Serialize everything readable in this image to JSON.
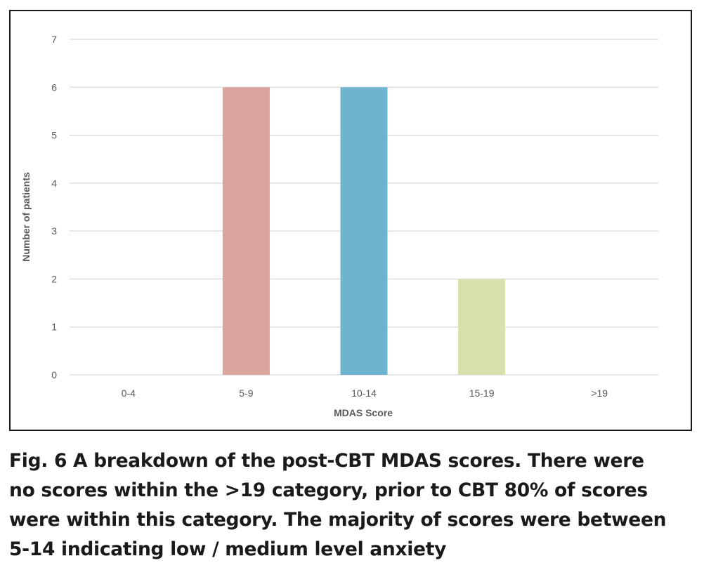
{
  "chart_data": {
    "type": "bar",
    "categories": [
      "0-4",
      "5-9",
      "10-14",
      "15-19",
      ">19"
    ],
    "values": [
      0,
      6,
      6,
      2,
      0
    ],
    "bar_colors": [
      "#dba59d",
      "#dba59d",
      "#6fb4ce",
      "#d8e0ad",
      "#dba59d"
    ],
    "xlabel": "MDAS Score",
    "ylabel": "Number of patients",
    "ylim": [
      0,
      7
    ],
    "yticks": [
      "0",
      "1",
      "2",
      "3",
      "4",
      "5",
      "6",
      "7"
    ],
    "grid": true,
    "gridline_color": "#d9d9d9",
    "label_color": "#595959"
  },
  "caption": {
    "lines": [
      "Fig. 6  A breakdown of the post-CBT MDAS scores. There were",
      "no scores within the >19 category, prior to CBT 80% of scores",
      "were within this category. The majority of scores were between",
      "5-14 indicating low / medium level anxiety"
    ]
  }
}
